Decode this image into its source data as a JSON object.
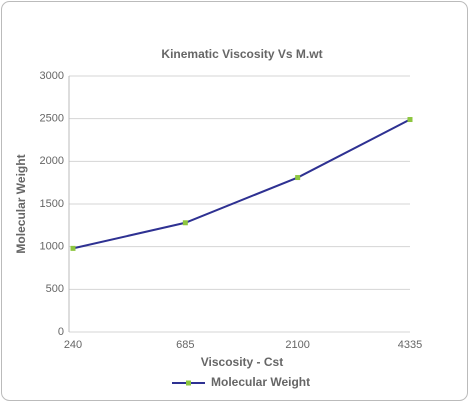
{
  "chart_data": {
    "type": "line",
    "title": "Kinematic Viscosity Vs M.wt",
    "x_label": "Viscosity - Cst",
    "y_label": "Molecular Weight",
    "categories": [
      "240",
      "685",
      "2100",
      "4335"
    ],
    "series": [
      {
        "name": "Molecular Weight",
        "color": "#2e3192",
        "marker_color": "#8dc63f",
        "values": [
          980,
          1280,
          1810,
          2490
        ]
      }
    ],
    "ylim": [
      0,
      3000
    ],
    "yticks": [
      0,
      500,
      1000,
      1500,
      2000,
      2500,
      3000
    ],
    "grid": true,
    "legend": "bottom"
  }
}
